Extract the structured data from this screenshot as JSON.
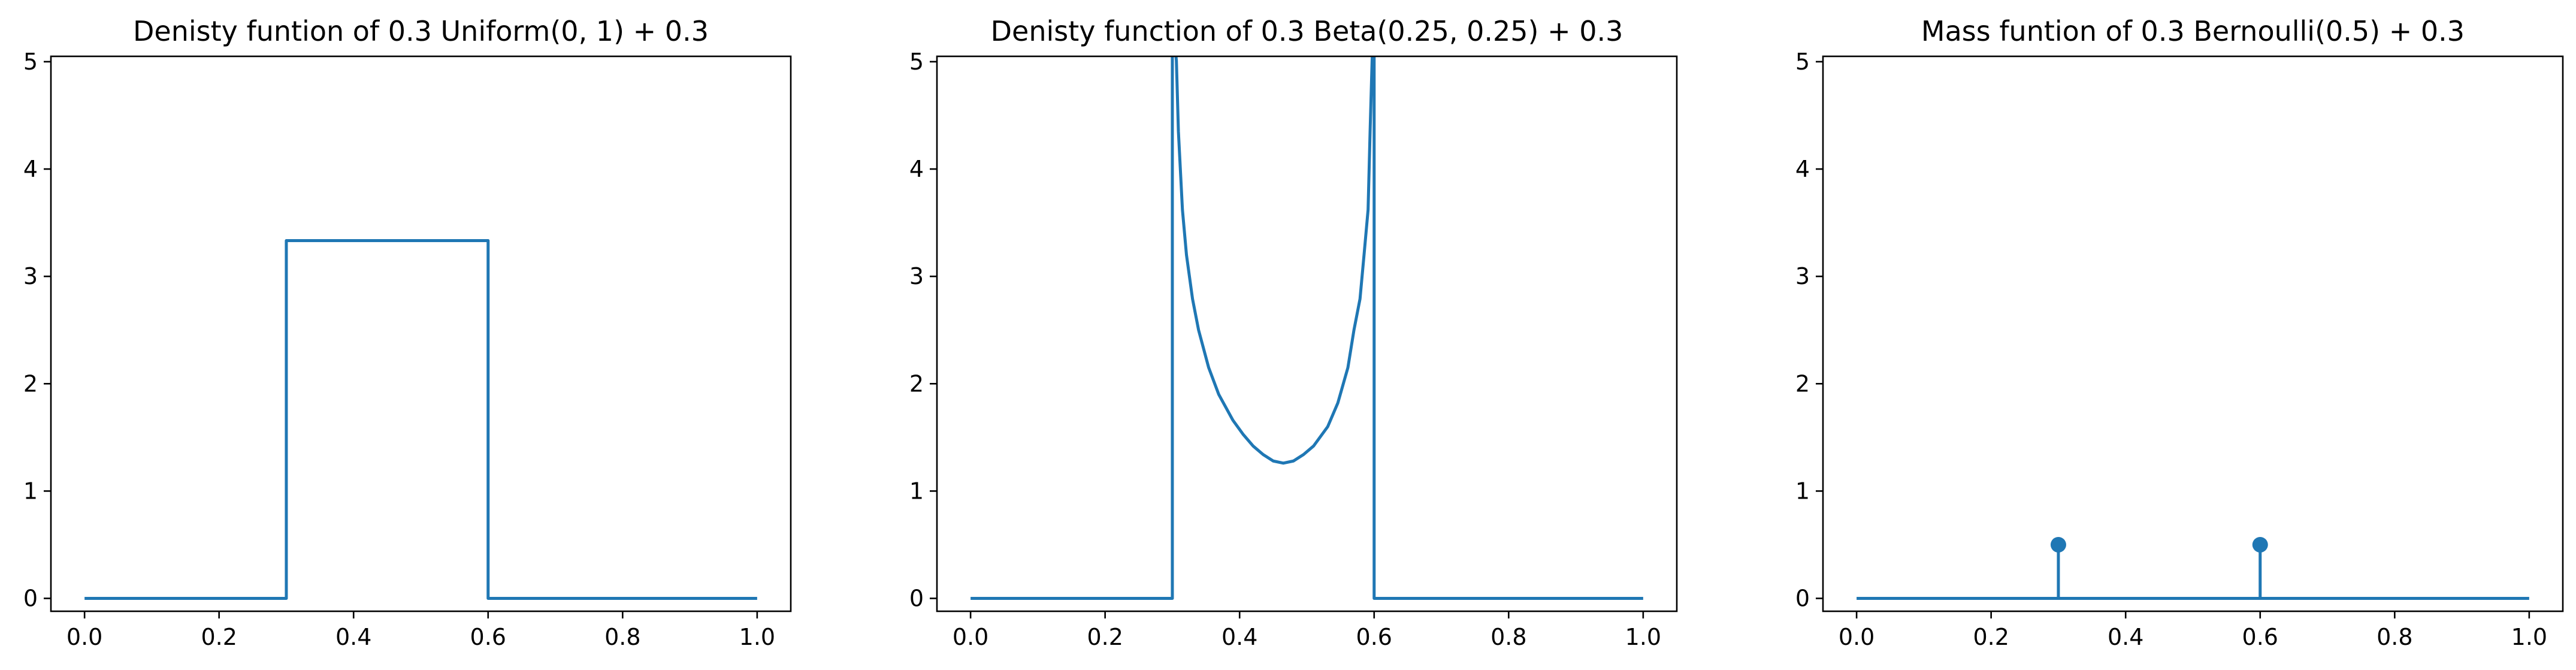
{
  "figure": {
    "line_color": "#1f77b4",
    "background": "#ffffff"
  },
  "chart_data": [
    {
      "type": "line",
      "title": "Denisty funtion of 0.3 Uniform(0, 1) + 0.3",
      "xlabel": "",
      "ylabel": "",
      "xlim": [
        -0.05,
        1.05
      ],
      "ylim": [
        -0.12,
        5.05
      ],
      "xticks": [
        0.0,
        0.2,
        0.4,
        0.6,
        0.8,
        1.0
      ],
      "xtick_labels": [
        "0.0",
        "0.2",
        "0.4",
        "0.6",
        "0.8",
        "1.0"
      ],
      "yticks": [
        0,
        1,
        2,
        3,
        4,
        5
      ],
      "ytick_labels": [
        "0",
        "1",
        "2",
        "3",
        "4",
        "5"
      ],
      "grid": false,
      "series": [
        {
          "x": [
            0.0,
            0.3,
            0.3,
            0.6,
            0.6,
            1.0
          ],
          "y": [
            0,
            0,
            3.333,
            3.333,
            0,
            0
          ]
        }
      ]
    },
    {
      "type": "line",
      "title": "Denisty function of 0.3 Beta(0.25, 0.25) + 0.3",
      "xlabel": "",
      "ylabel": "",
      "xlim": [
        -0.05,
        1.05
      ],
      "ylim": [
        -0.12,
        5.05
      ],
      "xticks": [
        0.0,
        0.2,
        0.4,
        0.6,
        0.8,
        1.0
      ],
      "xtick_labels": [
        "0.0",
        "0.2",
        "0.4",
        "0.6",
        "0.8",
        "1.0"
      ],
      "yticks": [
        0,
        1,
        2,
        3,
        4,
        5
      ],
      "ytick_labels": [
        "0",
        "1",
        "2",
        "3",
        "4",
        "5"
      ],
      "grid": false,
      "series": [
        {
          "x": [
            0.0,
            0.3,
            0.3,
            0.3015,
            0.303,
            0.306,
            0.309,
            0.315,
            0.321,
            0.33,
            0.339,
            0.354,
            0.369,
            0.39,
            0.405,
            0.42,
            0.435,
            0.45,
            0.465,
            0.48,
            0.495,
            0.51,
            0.531,
            0.546,
            0.561,
            0.57,
            0.579,
            0.585,
            0.591,
            0.594,
            0.597,
            0.5985,
            0.6,
            0.6,
            1.0
          ],
          "y": [
            0,
            0,
            5.2,
            5.2,
            5.2,
            5.01,
            4.35,
            3.62,
            3.2,
            2.79,
            2.5,
            2.15,
            1.9,
            1.66,
            1.53,
            1.42,
            1.34,
            1.28,
            1.26,
            1.28,
            1.34,
            1.42,
            1.6,
            1.82,
            2.15,
            2.5,
            2.79,
            3.2,
            3.62,
            4.35,
            5.01,
            5.2,
            5.2,
            0,
            0
          ]
        }
      ]
    },
    {
      "type": "stem",
      "title": "Mass funtion of 0.3 Bernoulli(0.5) + 0.3",
      "xlabel": "",
      "ylabel": "",
      "xlim": [
        -0.05,
        1.05
      ],
      "ylim": [
        -0.12,
        5.05
      ],
      "xticks": [
        0.0,
        0.2,
        0.4,
        0.6,
        0.8,
        1.0
      ],
      "xtick_labels": [
        "0.0",
        "0.2",
        "0.4",
        "0.6",
        "0.8",
        "1.0"
      ],
      "yticks": [
        0,
        1,
        2,
        3,
        4,
        5
      ],
      "ytick_labels": [
        "0",
        "1",
        "2",
        "3",
        "4",
        "5"
      ],
      "grid": false,
      "baseline": {
        "x": [
          0.0,
          1.0
        ],
        "y": 0
      },
      "series": [
        {
          "x": [
            0.3,
            0.6
          ],
          "y": [
            0.5,
            0.5
          ]
        }
      ]
    }
  ]
}
